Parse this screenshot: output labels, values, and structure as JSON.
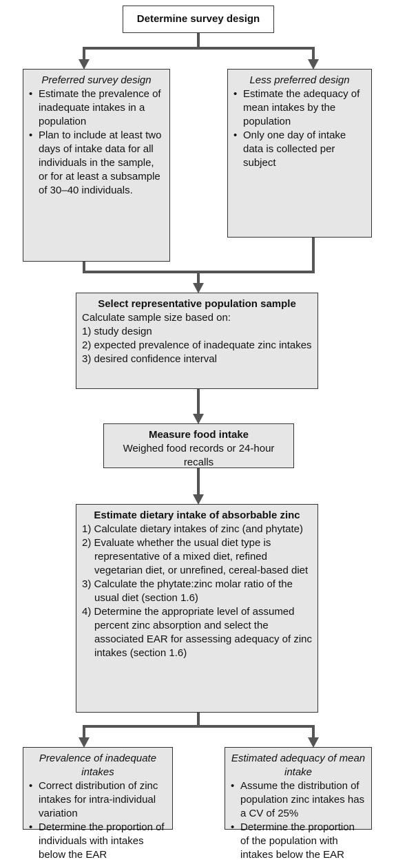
{
  "nodes": [
    {
      "title": "Determine survey design"
    },
    {
      "title": "Preferred survey design",
      "bullets": [
        "Estimate the prevalence of inadequate intakes in a population",
        "Plan to include at least two days of intake data for all individuals in the sample, or for at least a subsample of 30–40 individuals."
      ]
    },
    {
      "title": "Less preferred design",
      "bullets": [
        "Estimate the adequacy of mean intakes by the population",
        "Only one day of intake data is collected per subject"
      ]
    },
    {
      "title": "Select representative population sample",
      "text": "Calculate sample size based on:",
      "items": [
        "1) study design",
        "2) expected prevalence of inadequate zinc intakes",
        "3) desired confidence interval"
      ]
    },
    {
      "title": "Measure food intake",
      "text": "Weighed food records or 24-hour recalls"
    },
    {
      "title": "Estimate dietary intake of absorbable zinc",
      "items": [
        "1) Calculate dietary intakes of zinc (and phytate)",
        "2) Evaluate whether the usual diet type is representative of a mixed diet, refined vegetarian diet, or unrefined, cereal-based diet",
        "3) Calculate the phytate:zinc molar ratio of the usual diet (section 1.6)",
        "4) Determine the appropriate level of assumed percent zinc absorption and select the associated EAR for assessing adequacy of zinc intakes (section 1.6)"
      ]
    },
    {
      "title": "Prevalence of inadequate intakes",
      "bullets": [
        "Correct distribution of zinc intakes for intra-individual variation",
        "Determine the proportion of individuals with intakes below the EAR"
      ]
    },
    {
      "title": "Estimated adequacy of mean intake",
      "bullets": [
        "Assume the distribution of population zinc intakes has a CV of 25%",
        "Determine the proportion of the population with intakes below the EAR"
      ]
    }
  ]
}
